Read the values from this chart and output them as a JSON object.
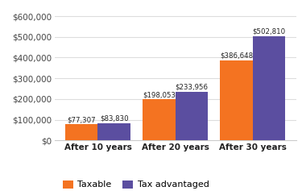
{
  "categories": [
    "After 10 years",
    "After 20 years",
    "After 30 years"
  ],
  "taxable": [
    77307,
    198053,
    386648
  ],
  "tax_advantaged": [
    83830,
    233956,
    502810
  ],
  "taxable_labels": [
    "$77,307",
    "$198,053",
    "$386,648"
  ],
  "tax_adv_labels": [
    "$83,830",
    "$233,956",
    "$502,810"
  ],
  "bar_color_taxable": "#f47321",
  "bar_color_tax_adv": "#5b4ea0",
  "ylim": [
    0,
    650000
  ],
  "yticks": [
    0,
    100000,
    200000,
    300000,
    400000,
    500000,
    600000
  ],
  "ytick_labels": [
    "$0",
    "$100,000",
    "$200,000",
    "$300,000",
    "$400,000",
    "$500,000",
    "$600,000"
  ],
  "legend_taxable": "Taxable",
  "legend_tax_adv": "Tax advantaged",
  "background_color": "#ffffff",
  "bar_width": 0.42,
  "label_fontsize": 6.2,
  "axis_label_fontsize": 7.5,
  "legend_fontsize": 8,
  "grid_color": "#dddddd"
}
